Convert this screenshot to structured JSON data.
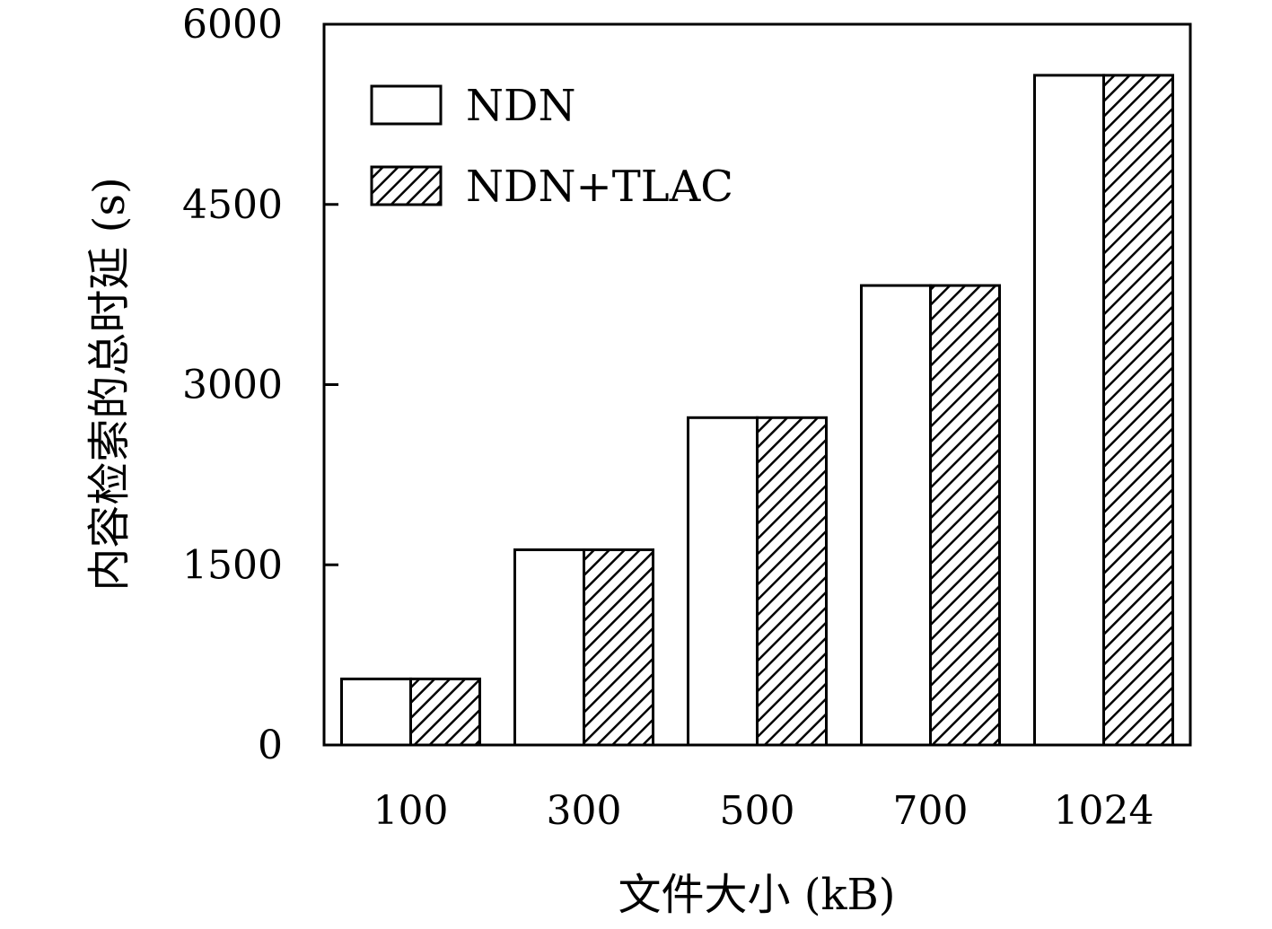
{
  "chart_data": {
    "type": "bar",
    "categories": [
      "100",
      "300",
      "500",
      "700",
      "1024"
    ],
    "series": [
      {
        "name": "NDN",
        "values": [
          550,
          1625,
          2725,
          3825,
          5575
        ],
        "fill": "none"
      },
      {
        "name": "NDN+TLAC",
        "values": [
          550,
          1625,
          2725,
          3825,
          5575
        ],
        "fill": "hatch"
      }
    ],
    "xlabel": "文件大小 (kB)",
    "ylabel": "内容检索的总时延 (s)",
    "ylim": [
      0,
      6000
    ],
    "yticks": [
      "0",
      "1500",
      "3000",
      "4500",
      "6000"
    ],
    "grid": false,
    "legend_position": "top-left"
  }
}
